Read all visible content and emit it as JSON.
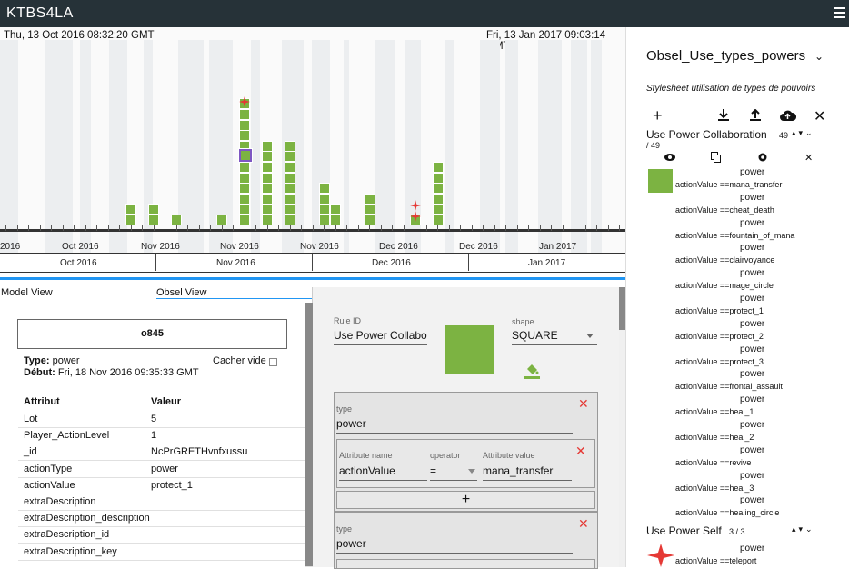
{
  "app": {
    "title": "KTBS4LA"
  },
  "timeline": {
    "start": "Thu, 13 Oct 2016 08:32:20 GMT",
    "end": "Fri, 13 Jan 2017 09:03:14 GMT",
    "axis1": [
      "2016",
      "Oct 2016",
      "Nov 2016",
      "Nov 2016",
      "Nov 2016",
      "Dec 2016",
      "Dec 2016",
      "Jan 2017"
    ],
    "axis2": [
      "Oct 2016",
      "Nov 2016",
      "Dec 2016",
      "Jan 2017"
    ]
  },
  "tabs": {
    "model": "Model View",
    "obsel": "Obsel View"
  },
  "obsel": {
    "id": "o845",
    "type_label": "Type:",
    "type": "power",
    "debut_label": "Début:",
    "debut": "Fri, 18 Nov 2016 09:35:33 GMT",
    "hide_empty": "Cacher vide",
    "col_attr": "Attribut",
    "col_val": "Valeur",
    "rows": [
      {
        "k": "Lot",
        "v": "5"
      },
      {
        "k": "Player_ActionLevel",
        "v": "1"
      },
      {
        "k": "_id",
        "v": "NcPrGRETHvnfxussu"
      },
      {
        "k": "actionType",
        "v": "power"
      },
      {
        "k": "actionValue",
        "v": "protect_1"
      },
      {
        "k": "extraDescription",
        "v": ""
      },
      {
        "k": "extraDescription_description",
        "v": ""
      },
      {
        "k": "extraDescription_id",
        "v": ""
      },
      {
        "k": "extraDescription_key",
        "v": ""
      }
    ]
  },
  "rule": {
    "id_label": "Rule ID",
    "id_value": "Use Power Collaboration",
    "shape_label": "shape",
    "shape_value": "SQUARE",
    "color": "#7cb342",
    "type_label": "type",
    "type_value": "power",
    "attr_name_label": "Attribute name",
    "attr_name": "actionValue",
    "operator_label": "operator",
    "operator": "=",
    "attr_value_label": "Attribute value",
    "attr_value": "mana_transfer",
    "add": "+",
    "type2_label": "type",
    "type2_value": "power"
  },
  "stylesheet": {
    "name": "Obsel_Use_types_powers",
    "description": "Stylesheet utilisation de types de pouvoirs",
    "rule1": {
      "name": "Use Power Collaboration",
      "count": "49",
      "total": "/ 49"
    },
    "rule2": {
      "name": "Use Power Self",
      "count": "3 / 3"
    },
    "entries": [
      {
        "w": "power",
        "c": "actionValue ==mana_transfer"
      },
      {
        "w": "power",
        "c": "actionValue ==cheat_death"
      },
      {
        "w": "power",
        "c": "actionValue ==fountain_of_mana"
      },
      {
        "w": "power",
        "c": "actionValue ==clairvoyance"
      },
      {
        "w": "power",
        "c": "actionValue ==mage_circle"
      },
      {
        "w": "power",
        "c": "actionValue ==protect_1"
      },
      {
        "w": "power",
        "c": "actionValue ==protect_2"
      },
      {
        "w": "power",
        "c": "actionValue ==protect_3"
      },
      {
        "w": "power",
        "c": "actionValue ==frontal_assault"
      },
      {
        "w": "power",
        "c": "actionValue ==heal_1"
      },
      {
        "w": "power",
        "c": "actionValue ==heal_2"
      },
      {
        "w": "power",
        "c": "actionValue ==revive"
      },
      {
        "w": "power",
        "c": "actionValue ==heal_3"
      },
      {
        "w": "power",
        "c": "actionValue ==healing_circle"
      }
    ],
    "self_entry": {
      "w": "power",
      "c": "actionValue ==teleport"
    }
  },
  "colors": {
    "green": "#7cb342",
    "red": "#e53935",
    "blue": "#2196f3",
    "purple": "#7e57c2"
  }
}
